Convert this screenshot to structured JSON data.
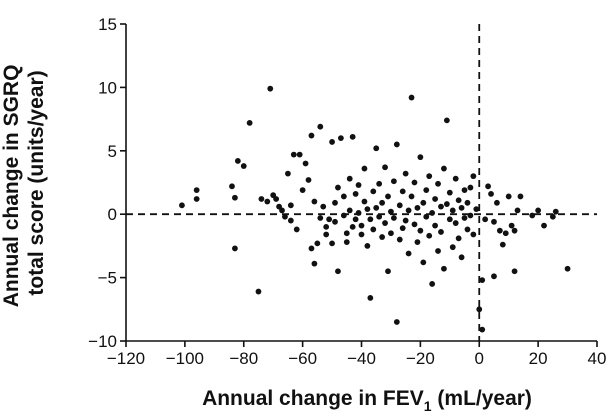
{
  "chart_data": {
    "type": "scatter",
    "title": "",
    "xlabel": {
      "main": "Annual change in FEV",
      "subscript": "1",
      "suffix": " (mL/year)"
    },
    "ylabel": {
      "line1": "Annual change in SGRQ",
      "line2": "total score (units/year)"
    },
    "xlim": [
      -120,
      40
    ],
    "ylim": [
      -10,
      15
    ],
    "xticks": [
      -120,
      -100,
      -80,
      -60,
      -40,
      -20,
      0,
      20,
      40
    ],
    "yticks": [
      -10,
      -5,
      0,
      5,
      10,
      15
    ],
    "tick_labels": {
      "x": [
        "−120",
        "−100",
        "−80",
        "−60",
        "−40",
        "−20",
        "0",
        "20",
        "40"
      ],
      "y": [
        "−10",
        "−5",
        "0",
        "5",
        "10",
        "15"
      ]
    },
    "reference_lines": [
      {
        "orientation": "horizontal",
        "value": 0,
        "style": "dashed"
      },
      {
        "orientation": "vertical",
        "value": 0,
        "style": "dashed"
      }
    ],
    "grid": false,
    "marker_color": "#111111",
    "points": [
      [
        -101,
        0.7
      ],
      [
        -96,
        1.9
      ],
      [
        -96,
        1.2
      ],
      [
        -84,
        2.2
      ],
      [
        -83,
        1.3
      ],
      [
        -83,
        -2.7
      ],
      [
        -82,
        4.2
      ],
      [
        -80,
        3.8
      ],
      [
        -78,
        7.2
      ],
      [
        -75,
        -6.1
      ],
      [
        -74,
        1.2
      ],
      [
        -72,
        1.0
      ],
      [
        -71,
        9.9
      ],
      [
        -70,
        1.5
      ],
      [
        -69,
        1.2
      ],
      [
        -68,
        0.6
      ],
      [
        -67,
        0.3
      ],
      [
        -66,
        -0.2
      ],
      [
        -65,
        3.2
      ],
      [
        -64,
        0.7
      ],
      [
        -64,
        -0.5
      ],
      [
        -63,
        4.7
      ],
      [
        -62,
        -1.2
      ],
      [
        -61,
        4.7
      ],
      [
        -60,
        1.9
      ],
      [
        -59,
        4.0
      ],
      [
        -58,
        2.7
      ],
      [
        -57,
        -2.7
      ],
      [
        -57,
        6.2
      ],
      [
        -56,
        -3.9
      ],
      [
        -56,
        1.0
      ],
      [
        -55,
        -2.3
      ],
      [
        -54,
        -0.3
      ],
      [
        -54,
        6.9
      ],
      [
        -53,
        0.6
      ],
      [
        -52,
        -1.0
      ],
      [
        -52,
        -1.6
      ],
      [
        -51,
        -0.4
      ],
      [
        -50,
        5.7
      ],
      [
        -50,
        -2.3
      ],
      [
        -49,
        0.9
      ],
      [
        -49,
        -0.6
      ],
      [
        -48,
        2.1
      ],
      [
        -48,
        -4.5
      ],
      [
        -47,
        6.0
      ],
      [
        -46,
        -0.1
      ],
      [
        -46,
        1.4
      ],
      [
        -45,
        -1.5
      ],
      [
        -45,
        -2.2
      ],
      [
        -44,
        0.3
      ],
      [
        -44,
        2.8
      ],
      [
        -43,
        6.1
      ],
      [
        -43,
        -1.0
      ],
      [
        -42,
        1.6
      ],
      [
        -42,
        -0.4
      ],
      [
        -41,
        0.1
      ],
      [
        -41,
        2.3
      ],
      [
        -40,
        -0.9
      ],
      [
        -40,
        -1.6
      ],
      [
        -39,
        1.0
      ],
      [
        -39,
        3.6
      ],
      [
        -38,
        -2.5
      ],
      [
        -38,
        0.4
      ],
      [
        -37,
        -0.4
      ],
      [
        -37,
        -6.6
      ],
      [
        -36,
        1.8
      ],
      [
        -36,
        -1.2
      ],
      [
        -35,
        0.5
      ],
      [
        -35,
        5.2
      ],
      [
        -34,
        -0.2
      ],
      [
        -34,
        2.4
      ],
      [
        -33,
        -1.8
      ],
      [
        -33,
        0.9
      ],
      [
        -32,
        3.7
      ],
      [
        -32,
        -0.7
      ],
      [
        -31,
        1.4
      ],
      [
        -31,
        -4.5
      ],
      [
        -30,
        0.2
      ],
      [
        -30,
        -1.5
      ],
      [
        -29,
        2.6
      ],
      [
        -29,
        -0.3
      ],
      [
        -28,
        5.5
      ],
      [
        -28,
        -8.5
      ],
      [
        -27,
        0.7
      ],
      [
        -27,
        -2.0
      ],
      [
        -26,
        1.8
      ],
      [
        -26,
        -1.1
      ],
      [
        -25,
        3.2
      ],
      [
        -25,
        -0.5
      ],
      [
        -24,
        0.3
      ],
      [
        -24,
        -3.1
      ],
      [
        -23,
        9.2
      ],
      [
        -23,
        1.4
      ],
      [
        -22,
        -0.8
      ],
      [
        -22,
        2.5
      ],
      [
        -21,
        -2.2
      ],
      [
        -21,
        0.5
      ],
      [
        -20,
        4.5
      ],
      [
        -20,
        -1.3
      ],
      [
        -19,
        0.9
      ],
      [
        -19,
        -3.8
      ],
      [
        -18,
        1.9
      ],
      [
        -18,
        -0.2
      ],
      [
        -17,
        -1.7
      ],
      [
        -17,
        3.0
      ],
      [
        -16,
        0.1
      ],
      [
        -16,
        -5.5
      ],
      [
        -15,
        1.2
      ],
      [
        -15,
        -0.9
      ],
      [
        -14,
        2.4
      ],
      [
        -14,
        -2.9
      ],
      [
        -13,
        0.6
      ],
      [
        -13,
        -1.4
      ],
      [
        -12,
        3.6
      ],
      [
        -12,
        -4.3
      ],
      [
        -11,
        0.8
      ],
      [
        -11,
        7.4
      ],
      [
        -10,
        -0.4
      ],
      [
        -10,
        1.7
      ],
      [
        -9,
        0.3
      ],
      [
        -9,
        -2.6
      ],
      [
        -8,
        2.8
      ],
      [
        -8,
        -0.7
      ],
      [
        -7,
        -1.9
      ],
      [
        -7,
        1.1
      ],
      [
        -6,
        0.5
      ],
      [
        -6,
        -3.4
      ],
      [
        -5,
        1.9
      ],
      [
        -5,
        -0.3
      ],
      [
        -4,
        -1.2
      ],
      [
        -4,
        0.9
      ],
      [
        -3,
        2.1
      ],
      [
        -3,
        -0.1
      ],
      [
        -2,
        -1.6
      ],
      [
        -2,
        3.0
      ],
      [
        -1,
        0.4
      ],
      [
        0,
        -7.5
      ],
      [
        1,
        -9.1
      ],
      [
        1,
        -5.2
      ],
      [
        2,
        -0.4
      ],
      [
        3,
        2.2
      ],
      [
        4,
        1.6
      ],
      [
        5,
        -0.6
      ],
      [
        5,
        -4.9
      ],
      [
        6,
        0.9
      ],
      [
        7,
        -1.3
      ],
      [
        8,
        -2.4
      ],
      [
        9,
        -1.5
      ],
      [
        10,
        1.4
      ],
      [
        11,
        -0.9
      ],
      [
        12,
        -4.5
      ],
      [
        12,
        -1.3
      ],
      [
        13,
        0.3
      ],
      [
        14,
        1.4
      ],
      [
        18,
        -0.1
      ],
      [
        20,
        0.3
      ],
      [
        22,
        -0.9
      ],
      [
        25,
        -0.2
      ],
      [
        26,
        0.2
      ],
      [
        30,
        -4.3
      ]
    ]
  }
}
